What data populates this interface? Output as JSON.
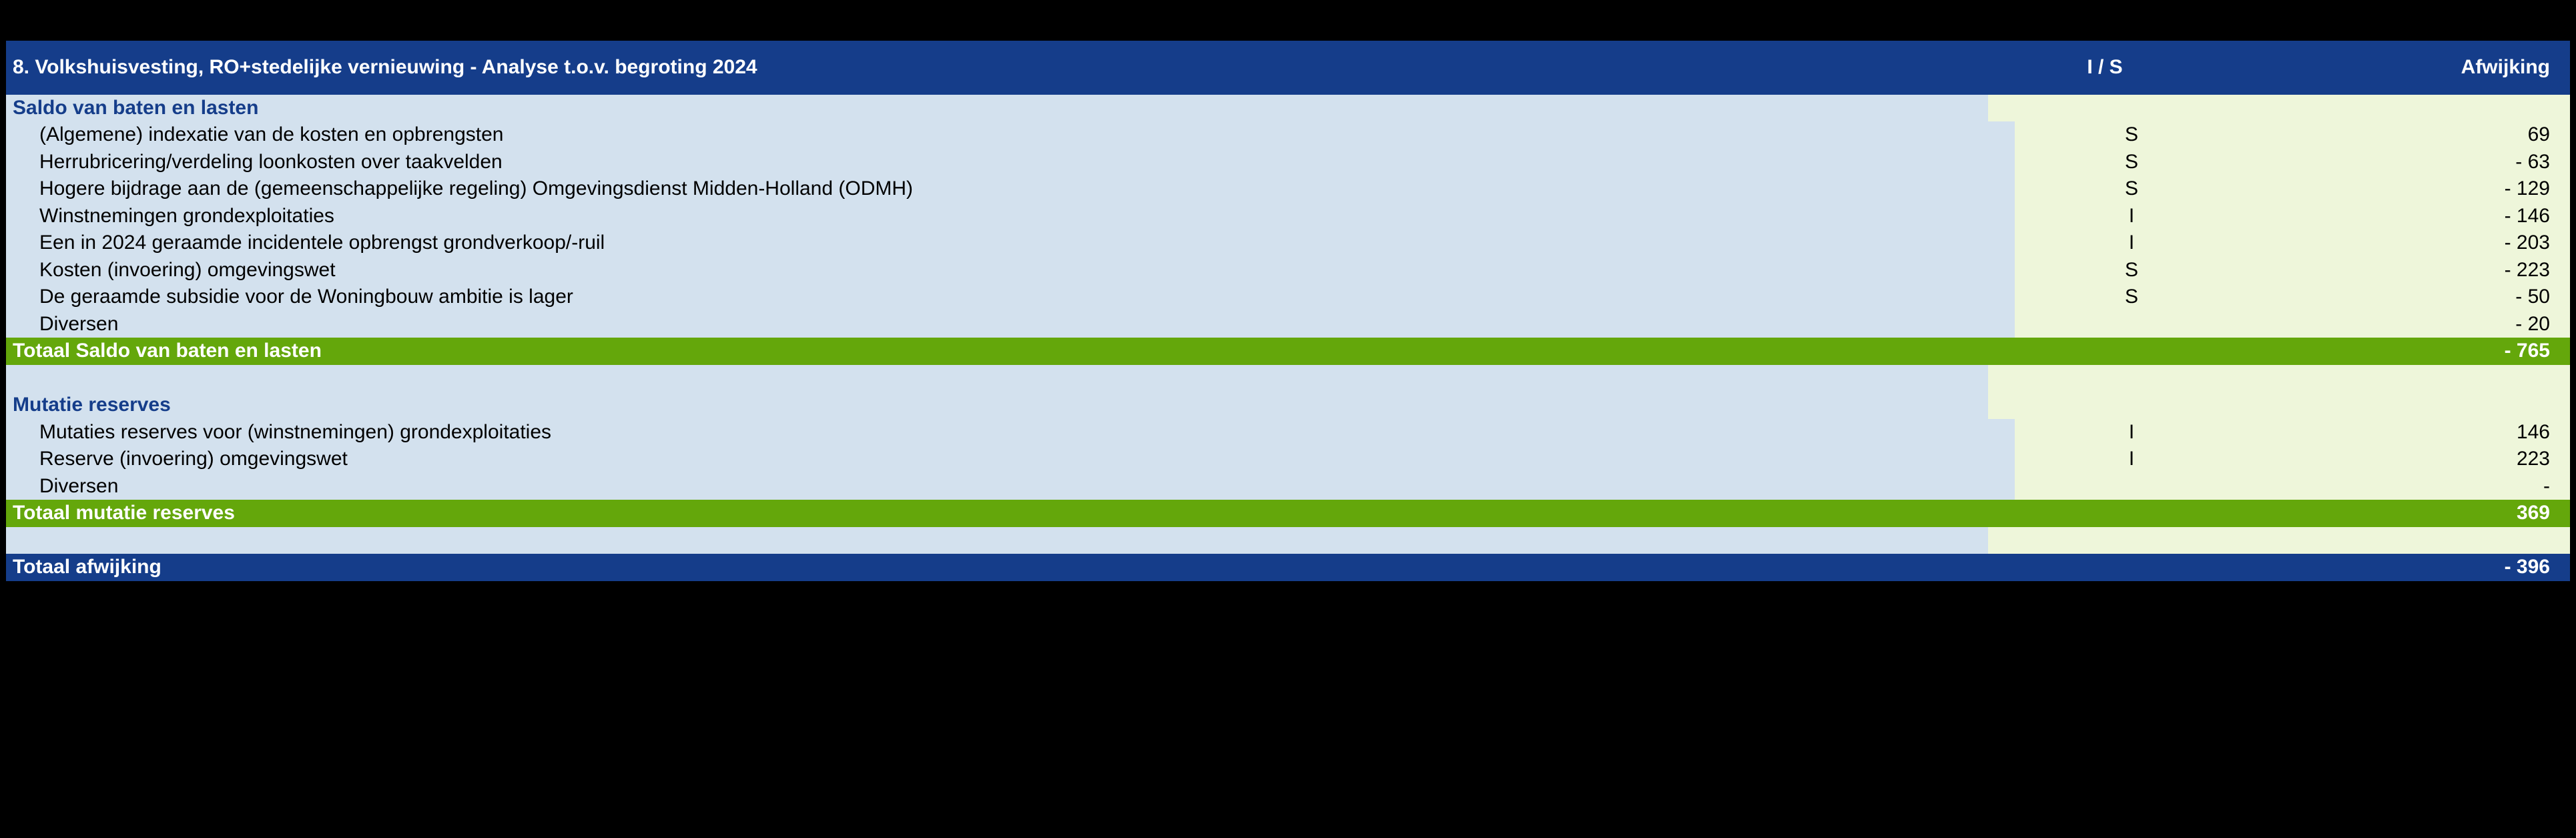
{
  "colors": {
    "header_bg": "#153d8a",
    "header_fg": "#ffffff",
    "body_left_bg": "#d3e1ee",
    "body_right_bg": "#eef6da",
    "subtotal_bg": "#64a70b",
    "section_fg": "#153d8a",
    "page_bg": "#000000",
    "font_family": "Verdana",
    "base_fontsize_pt": 22
  },
  "header": {
    "title": "8.  Volkshuisvesting, RO+stedelijke vernieuwing - Analyse t.o.v. begroting 2024",
    "col_is": "I / S",
    "col_dev": "Afwijking"
  },
  "sections": [
    {
      "title": "Saldo van baten en lasten",
      "rows": [
        {
          "label": "(Algemene) indexatie van de kosten en opbrengsten",
          "is": "S",
          "dev": "69"
        },
        {
          "label": "Herrubricering/verdeling loonkosten over taakvelden",
          "is": "S",
          "dev": "- 63"
        },
        {
          "label": "Hogere bijdrage aan de (gemeenschappelijke regeling) Omgevingsdienst Midden-Holland (ODMH)",
          "is": "S",
          "dev": "- 129"
        },
        {
          "label": "Winstnemingen grondexploitaties",
          "is": "I",
          "dev": "- 146"
        },
        {
          "label": "Een in 2024 geraamde incidentele opbrengst grondverkoop/-ruil",
          "is": "I",
          "dev": "- 203"
        },
        {
          "label": "Kosten (invoering) omgevingswet",
          "is": "S",
          "dev": "- 223"
        },
        {
          "label": "De geraamde subsidie voor de Woningbouw ambitie is lager",
          "is": "S",
          "dev": "- 50"
        },
        {
          "label": "Diversen",
          "is": "",
          "dev": "- 20"
        }
      ],
      "subtotal": {
        "label": "Totaal Saldo van baten en lasten",
        "dev": "- 765"
      }
    },
    {
      "title": "Mutatie reserves",
      "rows": [
        {
          "label": "Mutaties reserves voor (winstnemingen) grondexploitaties",
          "is": "I",
          "dev": "146"
        },
        {
          "label": "Reserve (invoering) omgevingswet",
          "is": "I",
          "dev": "223"
        },
        {
          "label": "Diversen",
          "is": "",
          "dev": "-"
        }
      ],
      "subtotal": {
        "label": "Totaal mutatie reserves",
        "dev": "369"
      }
    }
  ],
  "grand": {
    "label": "Totaal afwijking",
    "dev": "- 396"
  }
}
